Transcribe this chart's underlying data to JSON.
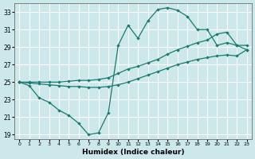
{
  "xlabel": "Humidex (Indice chaleur)",
  "bg_color": "#cce8ea",
  "grid_color": "#ffffff",
  "line_color": "#1a7a6e",
  "x_values": [
    0,
    1,
    2,
    3,
    4,
    5,
    6,
    7,
    8,
    9,
    10,
    11,
    12,
    13,
    14,
    15,
    16,
    17,
    18,
    19,
    20,
    21,
    22,
    23
  ],
  "line_jagged": [
    25.0,
    24.6,
    23.2,
    22.7,
    21.8,
    21.2,
    20.3,
    19.0,
    19.2,
    21.5,
    29.2,
    31.5,
    30.0,
    32.0,
    33.3,
    33.5,
    33.2,
    32.5,
    31.0,
    31.0,
    29.2,
    29.5,
    29.2,
    28.7
  ],
  "line_upper": [
    25.0,
    25.0,
    25.0,
    25.0,
    25.0,
    25.1,
    25.2,
    25.2,
    25.3,
    25.5,
    26.0,
    26.5,
    26.8,
    27.2,
    27.6,
    28.2,
    28.7,
    29.1,
    29.5,
    29.8,
    30.5,
    30.7,
    29.2,
    29.2
  ],
  "line_lower": [
    25.0,
    24.9,
    24.8,
    24.7,
    24.6,
    24.5,
    24.5,
    24.4,
    24.4,
    24.5,
    24.7,
    25.0,
    25.4,
    25.8,
    26.2,
    26.6,
    27.0,
    27.3,
    27.6,
    27.8,
    28.0,
    28.1,
    28.0,
    28.7
  ],
  "ylim": [
    18.5,
    34.0
  ],
  "xlim": [
    -0.5,
    23.5
  ],
  "yticks": [
    19,
    21,
    23,
    25,
    27,
    29,
    31,
    33
  ],
  "xticks": [
    0,
    1,
    2,
    3,
    4,
    5,
    6,
    7,
    8,
    9,
    10,
    11,
    12,
    13,
    14,
    15,
    16,
    17,
    18,
    19,
    20,
    21,
    22,
    23
  ]
}
